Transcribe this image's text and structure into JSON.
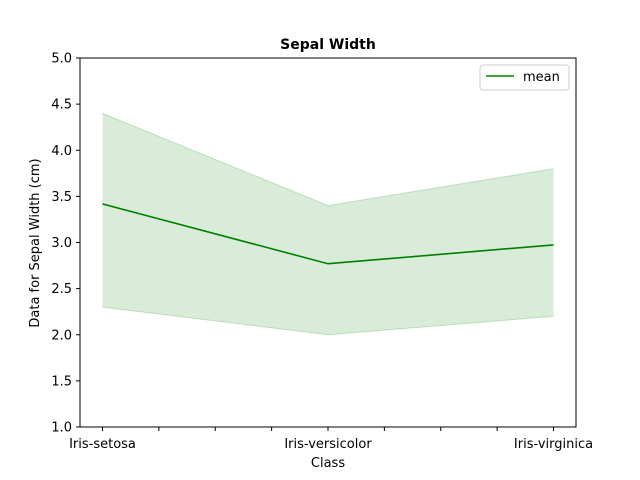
{
  "chart_data": {
    "type": "line",
    "title": "Sepal Width",
    "xlabel": "Class",
    "ylabel": "Data for Sepal Width (cm)",
    "categories": [
      "Iris-setosa",
      "Iris-versicolor",
      "Iris-virginica"
    ],
    "ylim": [
      1.0,
      5.0
    ],
    "yticks": [
      "1.0",
      "1.5",
      "2.0",
      "2.5",
      "3.0",
      "3.5",
      "4.0",
      "4.5",
      "5.0"
    ],
    "series": [
      {
        "name": "mean",
        "values": [
          3.418,
          2.77,
          2.974
        ],
        "color": "#008000"
      }
    ],
    "band": {
      "min": [
        2.3,
        2.0,
        2.2
      ],
      "max": [
        4.4,
        3.4,
        3.8
      ],
      "color": "#008000",
      "opacity": 0.15
    },
    "grid": false,
    "legend_position": "upper right"
  }
}
